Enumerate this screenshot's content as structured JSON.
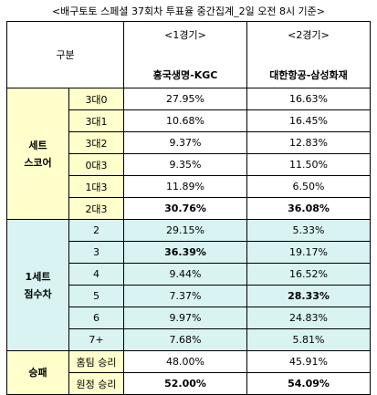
{
  "title": "<배구토토 스페셜 37회차 투표율 중간집계_2일 오전 8시 기준>",
  "header": {
    "gubun": "구분",
    "games": [
      {
        "label": "<1경기>",
        "match": "흥국생명-KGC"
      },
      {
        "label": "<2경기>",
        "match": "대한항공-삼성화재"
      }
    ]
  },
  "sections": [
    {
      "category": "세트\n스코어",
      "rows": [
        {
          "label": "3대0",
          "g1": "27.95%",
          "g2": "16.63%",
          "b1": false,
          "b2": false
        },
        {
          "label": "3대1",
          "g1": "10.68%",
          "g2": "16.45%",
          "b1": false,
          "b2": false
        },
        {
          "label": "3대2",
          "g1": "9.37%",
          "g2": "12.83%",
          "b1": false,
          "b2": false
        },
        {
          "label": "0대3",
          "g1": "9.35%",
          "g2": "11.50%",
          "b1": false,
          "b2": false
        },
        {
          "label": "1대3",
          "g1": "11.89%",
          "g2": "6.50%",
          "b1": false,
          "b2": false
        },
        {
          "label": "2대3",
          "g1": "30.76%",
          "g2": "36.08%",
          "b1": true,
          "b2": true
        }
      ]
    },
    {
      "category": "1세트\n점수차",
      "rows": [
        {
          "label": "2",
          "g1": "29.15%",
          "g2": "5.33%",
          "b1": false,
          "b2": false
        },
        {
          "label": "3",
          "g1": "36.39%",
          "g2": "19.17%",
          "b1": true,
          "b2": false
        },
        {
          "label": "4",
          "g1": "9.44%",
          "g2": "16.52%",
          "b1": false,
          "b2": false
        },
        {
          "label": "5",
          "g1": "7.37%",
          "g2": "28.33%",
          "b1": false,
          "b2": true
        },
        {
          "label": "6",
          "g1": "9.97%",
          "g2": "24.83%",
          "b1": false,
          "b2": false
        },
        {
          "label": "7+",
          "g1": "7.68%",
          "g2": "5.81%",
          "b1": false,
          "b2": false
        }
      ]
    },
    {
      "category": "승패",
      "rows": [
        {
          "label": "홈팀 승리",
          "g1": "48.00%",
          "g2": "45.91%",
          "b1": false,
          "b2": false
        },
        {
          "label": "원정 승리",
          "g1": "52.00%",
          "g2": "54.09%",
          "b1": true,
          "b2": true
        }
      ]
    }
  ],
  "colors": {
    "yellow_cell": "#ffffcc",
    "teal_cell": "#d9f3f3",
    "border": "#000000"
  }
}
